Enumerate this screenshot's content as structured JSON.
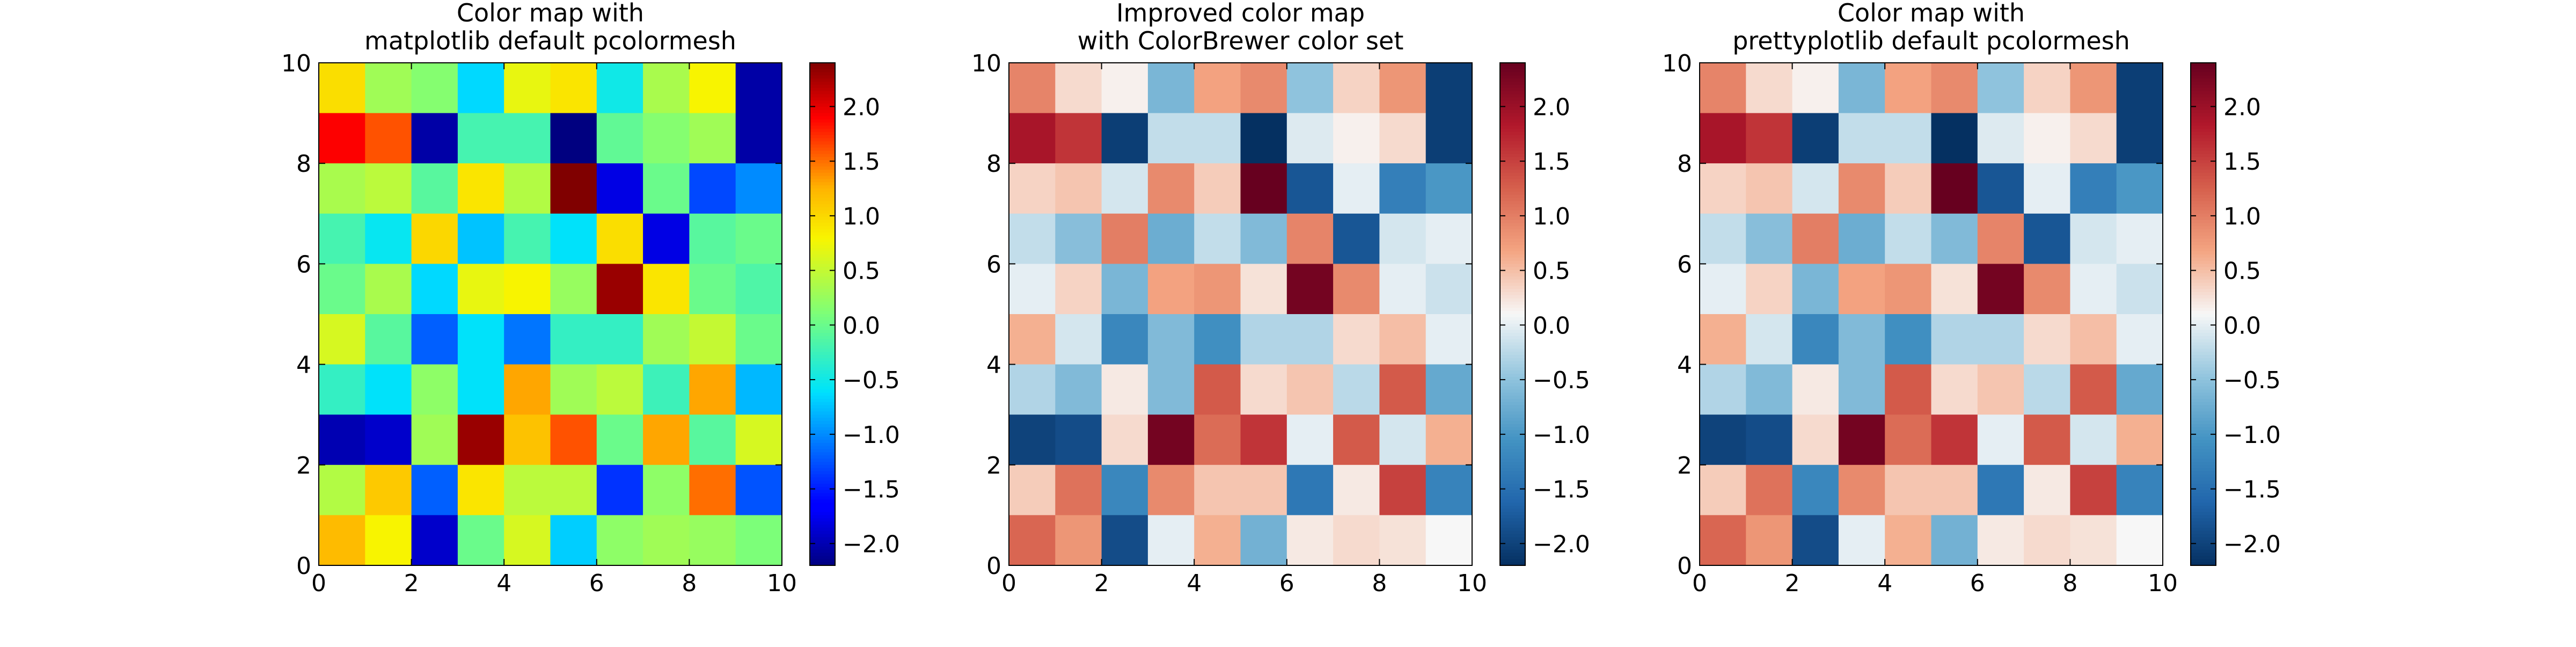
{
  "chart_data": [
    {
      "type": "heatmap",
      "title": "Color map with\nmatplotlib default pcolormesh",
      "colormap": "jet",
      "xlim": [
        0,
        10
      ],
      "ylim": [
        0,
        10
      ],
      "x_ticks": [
        "0",
        "2",
        "4",
        "6",
        "8",
        "10"
      ],
      "y_ticks": [
        "0",
        "2",
        "4",
        "6",
        "8",
        "10"
      ],
      "colorbar_ticks": [
        "2.0",
        "1.5",
        "1.0",
        "0.5",
        "0.0",
        "−0.5",
        "−1.0",
        "−1.5",
        "−2.0"
      ],
      "color_range": [
        -2.2,
        2.4
      ],
      "grid": false,
      "values": [
        [
          0.95,
          0.3,
          0.15,
          -0.65,
          0.7,
          0.9,
          -0.5,
          0.35,
          0.8,
          -2.05
        ],
        [
          1.9,
          1.6,
          -2.05,
          -0.2,
          -0.2,
          -2.2,
          -0.05,
          0.15,
          0.3,
          -2.05
        ],
        [
          0.35,
          0.45,
          -0.1,
          0.9,
          0.4,
          2.4,
          -1.8,
          0.0,
          -1.3,
          -1.0
        ],
        [
          -0.2,
          -0.55,
          1.0,
          -0.75,
          -0.2,
          -0.6,
          0.95,
          -1.8,
          -0.1,
          0.0
        ],
        [
          0.0,
          0.35,
          -0.65,
          0.7,
          0.8,
          0.25,
          2.3,
          0.9,
          0.0,
          -0.15
        ],
        [
          0.6,
          -0.1,
          -1.2,
          -0.6,
          -1.1,
          -0.3,
          -0.3,
          0.3,
          0.5,
          0.0
        ],
        [
          -0.3,
          -0.6,
          0.2,
          -0.6,
          1.3,
          0.3,
          0.45,
          -0.25,
          1.3,
          -0.8
        ],
        [
          -2.0,
          -1.9,
          0.3,
          2.3,
          1.15,
          1.6,
          0.0,
          1.3,
          -0.1,
          0.6
        ],
        [
          0.4,
          1.1,
          -1.2,
          0.9,
          0.45,
          0.45,
          -1.4,
          0.2,
          1.5,
          -1.25
        ],
        [
          1.2,
          0.8,
          -1.9,
          0.0,
          0.6,
          -0.7,
          0.2,
          0.3,
          0.25,
          0.1
        ]
      ]
    },
    {
      "type": "heatmap",
      "title": "Improved color map\nwith ColorBrewer color set",
      "colormap": "RdBu_r",
      "xlim": [
        0,
        10
      ],
      "ylim": [
        0,
        10
      ],
      "x_ticks": [
        "0",
        "2",
        "4",
        "6",
        "8",
        "10"
      ],
      "y_ticks": [
        "0",
        "2",
        "4",
        "6",
        "8",
        "10"
      ],
      "colorbar_ticks": [
        "2.0",
        "1.5",
        "1.0",
        "0.5",
        "0.0",
        "−0.5",
        "−1.0",
        "−1.5",
        "−2.0"
      ],
      "color_range": [
        -2.2,
        2.4
      ],
      "grid": false,
      "values": [
        [
          0.95,
          0.3,
          0.15,
          -0.65,
          0.7,
          0.9,
          -0.5,
          0.35,
          0.8,
          -2.05
        ],
        [
          1.9,
          1.6,
          -2.05,
          -0.2,
          -0.2,
          -2.2,
          -0.05,
          0.15,
          0.3,
          -2.05
        ],
        [
          0.35,
          0.45,
          -0.1,
          0.9,
          0.4,
          2.4,
          -1.8,
          0.0,
          -1.3,
          -1.0
        ],
        [
          -0.2,
          -0.55,
          1.0,
          -0.75,
          -0.2,
          -0.6,
          0.95,
          -1.8,
          -0.1,
          0.0
        ],
        [
          0.0,
          0.35,
          -0.65,
          0.7,
          0.8,
          0.25,
          2.3,
          0.9,
          0.0,
          -0.15
        ],
        [
          0.6,
          -0.1,
          -1.2,
          -0.6,
          -1.1,
          -0.3,
          -0.3,
          0.3,
          0.5,
          0.0
        ],
        [
          -0.3,
          -0.6,
          0.2,
          -0.6,
          1.3,
          0.3,
          0.45,
          -0.25,
          1.3,
          -0.8
        ],
        [
          -2.0,
          -1.9,
          0.3,
          2.3,
          1.15,
          1.6,
          0.0,
          1.3,
          -0.1,
          0.6
        ],
        [
          0.4,
          1.1,
          -1.2,
          0.9,
          0.45,
          0.45,
          -1.4,
          0.2,
          1.5,
          -1.25
        ],
        [
          1.2,
          0.8,
          -1.9,
          0.0,
          0.6,
          -0.7,
          0.2,
          0.3,
          0.25,
          0.1
        ]
      ]
    },
    {
      "type": "heatmap",
      "title": "Color map with\nprettyplotlib default pcolormesh",
      "colormap": "RdBu_r",
      "xlim": [
        0,
        10
      ],
      "ylim": [
        0,
        10
      ],
      "x_ticks": [
        "0",
        "2",
        "4",
        "6",
        "8",
        "10"
      ],
      "y_ticks": [
        "0",
        "2",
        "4",
        "6",
        "8",
        "10"
      ],
      "colorbar_ticks": [
        "2.0",
        "1.5",
        "1.0",
        "0.5",
        "0.0",
        "−0.5",
        "−1.0",
        "−1.5",
        "−2.0"
      ],
      "color_range": [
        -2.2,
        2.4
      ],
      "grid": false,
      "values": [
        [
          0.95,
          0.3,
          0.15,
          -0.65,
          0.7,
          0.9,
          -0.5,
          0.35,
          0.8,
          -2.05
        ],
        [
          1.9,
          1.6,
          -2.05,
          -0.2,
          -0.2,
          -2.2,
          -0.05,
          0.15,
          0.3,
          -2.05
        ],
        [
          0.35,
          0.45,
          -0.1,
          0.9,
          0.4,
          2.4,
          -1.8,
          0.0,
          -1.3,
          -1.0
        ],
        [
          -0.2,
          -0.55,
          1.0,
          -0.75,
          -0.2,
          -0.6,
          0.95,
          -1.8,
          -0.1,
          0.0
        ],
        [
          0.0,
          0.35,
          -0.65,
          0.7,
          0.8,
          0.25,
          2.3,
          0.9,
          0.0,
          -0.15
        ],
        [
          0.6,
          -0.1,
          -1.2,
          -0.6,
          -1.1,
          -0.3,
          -0.3,
          0.3,
          0.5,
          0.0
        ],
        [
          -0.3,
          -0.6,
          0.2,
          -0.6,
          1.3,
          0.3,
          0.45,
          -0.25,
          1.3,
          -0.8
        ],
        [
          -2.0,
          -1.9,
          0.3,
          2.3,
          1.15,
          1.6,
          0.0,
          1.3,
          -0.1,
          0.6
        ],
        [
          0.4,
          1.1,
          -1.2,
          0.9,
          0.45,
          0.45,
          -1.4,
          0.2,
          1.5,
          -1.25
        ],
        [
          1.2,
          0.8,
          -1.9,
          0.0,
          0.6,
          -0.7,
          0.2,
          0.3,
          0.25,
          0.1
        ]
      ]
    }
  ]
}
